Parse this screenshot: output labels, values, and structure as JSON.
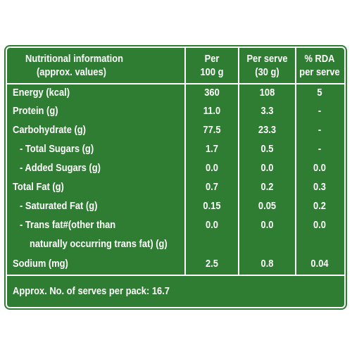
{
  "header": {
    "col1_line1": "Nutritional information",
    "col1_line2": "(approx. values)",
    "col2_line1": "Per",
    "col2_line2": "100 g",
    "col3_line1": "Per serve",
    "col3_line2": "(30 g)",
    "col4_line1": "% RDA",
    "col4_line2": "per serve"
  },
  "rows": [
    {
      "label": "Energy (kcal)",
      "per100": "360",
      "perserve": "108",
      "rda": "5"
    },
    {
      "label": "Protein (g)",
      "per100": "11.0",
      "perserve": "3.3",
      "rda": "-"
    },
    {
      "label": "Carbohydrate (g)",
      "per100": "77.5",
      "perserve": "23.3",
      "rda": "-"
    },
    {
      "label": "- Total Sugars (g)",
      "per100": "1.7",
      "perserve": "0.5",
      "rda": "-"
    },
    {
      "label": "- Added Sugars (g)",
      "per100": "0.0",
      "perserve": "0.0",
      "rda": "0.0"
    },
    {
      "label": "Total Fat (g)",
      "per100": "0.7",
      "perserve": "0.2",
      "rda": "0.3"
    },
    {
      "label": "- Saturated Fat (g)",
      "per100": "0.15",
      "perserve": "0.05",
      "rda": "0.2"
    },
    {
      "label": "- Trans fat#(other than",
      "per100": "0.0",
      "perserve": "0.0",
      "rda": "0.0"
    },
    {
      "label": "naturally occurring trans fat) (g)",
      "per100": "",
      "perserve": "",
      "rda": ""
    },
    {
      "label": "Sodium (mg)",
      "per100": "2.5",
      "perserve": "0.8",
      "rda": "0.04"
    }
  ],
  "footer": "Approx. No. of serves per pack: 16.7",
  "colors": {
    "background": "#2e7d32",
    "text": "#ffffff"
  }
}
